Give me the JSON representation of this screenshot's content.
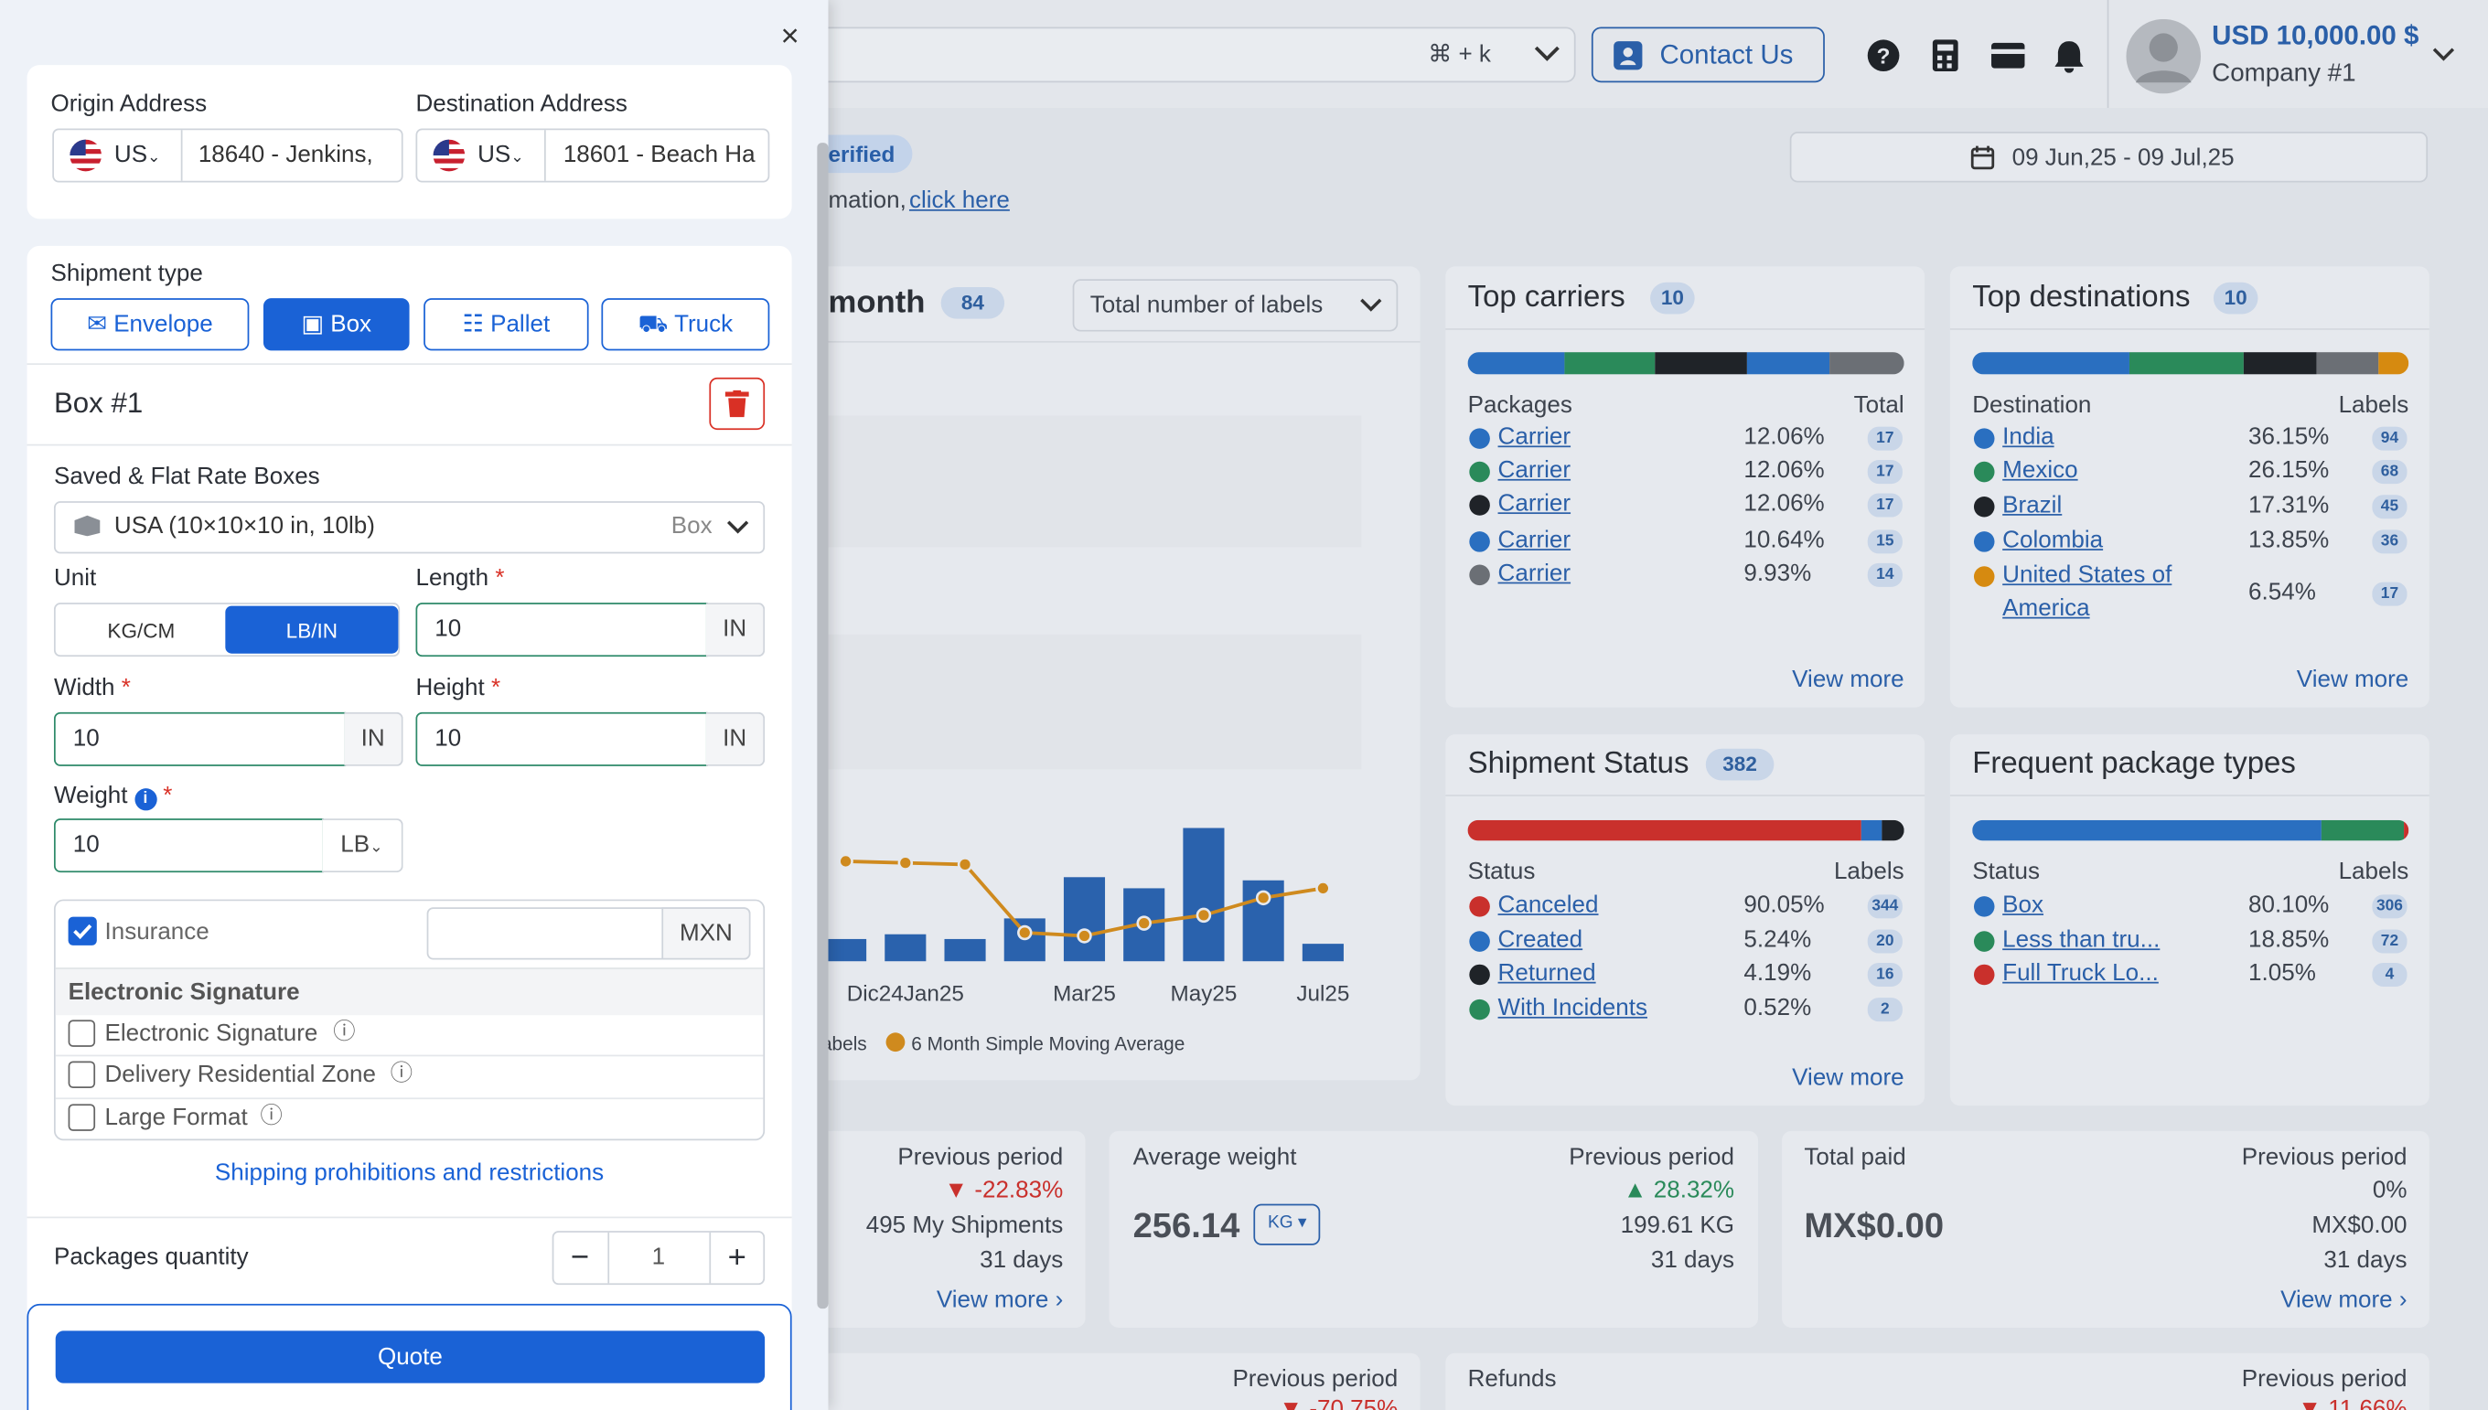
{
  "topbar": {
    "shortcut": "⌘ + k",
    "contact": "Contact Us",
    "balance": "USD 10,000.00 $",
    "company": "Company #1"
  },
  "notice": {
    "badge": "erified",
    "text": "mation,",
    "link": "click here"
  },
  "date_range": "09 Jun,25 - 09 Jul,25",
  "chart_panel": {
    "title": "month",
    "count": "84",
    "select": "Total number of labels"
  },
  "chart_data": {
    "type": "bar_line",
    "categories": [
      null,
      "Dic24Jan25",
      null,
      null,
      "Mar25",
      null,
      "May25",
      null,
      "Jul25"
    ],
    "series": [
      {
        "name": "Labels",
        "type": "bar",
        "color": "#2a62ad",
        "values": [
          14,
          17,
          14,
          27,
          53,
          46,
          84,
          51,
          11
        ]
      },
      {
        "name": "6 Month Simple Moving Average",
        "type": "line",
        "color": "#cf8a1e",
        "values": [
          63,
          62,
          61,
          18,
          16,
          24,
          29,
          40,
          46
        ]
      }
    ]
  },
  "top_carriers": {
    "title": "Top carriers",
    "count": "10",
    "col1": "Packages",
    "col2": "Total",
    "view_more": "View more",
    "rows": [
      {
        "name": "Carrier",
        "pct": "12.06%",
        "n": "17",
        "color": "#2a6fc0"
      },
      {
        "name": "Carrier",
        "pct": "12.06%",
        "n": "17",
        "color": "#2a8a5a"
      },
      {
        "name": "Carrier",
        "pct": "12.06%",
        "n": "17",
        "color": "#1f2328"
      },
      {
        "name": "Carrier",
        "pct": "10.64%",
        "n": "15",
        "color": "#2a6fc0"
      },
      {
        "name": "Carrier",
        "pct": "9.93%",
        "n": "14",
        "color": "#6b6f75"
      }
    ]
  },
  "top_destinations": {
    "title": "Top destinations",
    "count": "10",
    "col1": "Destination",
    "col2": "Labels",
    "view_more": "View more",
    "rows": [
      {
        "name": "India",
        "pct": "36.15%",
        "n": "94",
        "color": "#2a6fc0"
      },
      {
        "name": "Mexico",
        "pct": "26.15%",
        "n": "68",
        "color": "#2a8a5a"
      },
      {
        "name": "Brazil",
        "pct": "17.31%",
        "n": "45",
        "color": "#1f2328"
      },
      {
        "name": "Colombia",
        "pct": "13.85%",
        "n": "36",
        "color": "#2a6fc0"
      },
      {
        "name": "United States of America",
        "pct": "6.54%",
        "n": "17",
        "color": "#d68a10"
      }
    ]
  },
  "shipment_status": {
    "title": "Shipment Status",
    "count": "382",
    "col1": "Status",
    "col2": "Labels",
    "view_more": "View more",
    "rows": [
      {
        "name": "Canceled",
        "pct": "90.05%",
        "n": "344",
        "color": "#c9302c"
      },
      {
        "name": "Created",
        "pct": "5.24%",
        "n": "20",
        "color": "#2a6fc0"
      },
      {
        "name": "Returned",
        "pct": "4.19%",
        "n": "16",
        "color": "#1f2328"
      },
      {
        "name": "With Incidents",
        "pct": "0.52%",
        "n": "2",
        "color": "#2a8a5a"
      }
    ]
  },
  "package_types": {
    "title": "Frequent package types",
    "col1": "Status",
    "col2": "Labels",
    "rows": [
      {
        "name": "Box",
        "pct": "80.10%",
        "n": "306",
        "color": "#2a6fc0"
      },
      {
        "name": "Less than tru...",
        "pct": "18.85%",
        "n": "72",
        "color": "#2a8a5a"
      },
      {
        "name": "Full Truck Lo...",
        "pct": "1.05%",
        "n": "4",
        "color": "#c9302c"
      }
    ]
  },
  "stats": [
    {
      "prev_label": "Previous period",
      "change": "-22.83%",
      "prev_value": "495 My Shipments",
      "days": "31 days",
      "view_more": "View more"
    },
    {
      "title": "Average weight",
      "value": "256.14",
      "unit": "KG",
      "prev_label": "Previous period",
      "change": "28.32%",
      "prev_value": "199.61 KG",
      "days": "31 days"
    },
    {
      "title": "Total paid",
      "value": "MX$0.00",
      "prev_label": "Previous period",
      "change": "0%",
      "prev_value": "MX$0.00",
      "days": "31 days",
      "view_more": "View more"
    },
    {
      "prev_label": "Previous period",
      "change": "-70.75%"
    },
    {
      "title": "Refunds",
      "prev_label": "Previous period",
      "change": "11.66%"
    }
  ],
  "drawer": {
    "close": "×",
    "origin_label": "Origin Address",
    "origin_country": "US",
    "origin_value": "18640 - Jenkins,",
    "destination_label": "Destination Address",
    "destination_country": "US",
    "destination_value": "18601 - Beach Ha",
    "shipment_type_label": "Shipment type",
    "types": [
      "Envelope",
      "Box",
      "Pallet",
      "Truck"
    ],
    "box_title": "Box #1",
    "saved_label": "Saved & Flat Rate Boxes",
    "saved_value": "USA (10×10×10 in, 10lb)",
    "saved_kind": "Box",
    "unit_label": "Unit",
    "units": [
      "KG/CM",
      "LB/IN"
    ],
    "length_label": "Length",
    "length_value": "10",
    "length_unit": "IN",
    "width_label": "Width",
    "width_value": "10",
    "width_unit": "IN",
    "height_label": "Height",
    "height_value": "10",
    "height_unit": "IN",
    "weight_label": "Weight",
    "weight_value": "10",
    "weight_unit": "LB",
    "required": "*",
    "insurance_label": "Insurance",
    "insurance_currency": "MXN",
    "esign_header": "Electronic Signature",
    "options": [
      "Electronic Signature",
      "Delivery Residential Zone",
      "Large Format"
    ],
    "prohibitions_link": "Shipping prohibitions and restrictions",
    "quantity_label": "Packages quantity",
    "quantity_minus": "−",
    "quantity_value": "1",
    "quantity_plus": "+",
    "quote": "Quote"
  }
}
